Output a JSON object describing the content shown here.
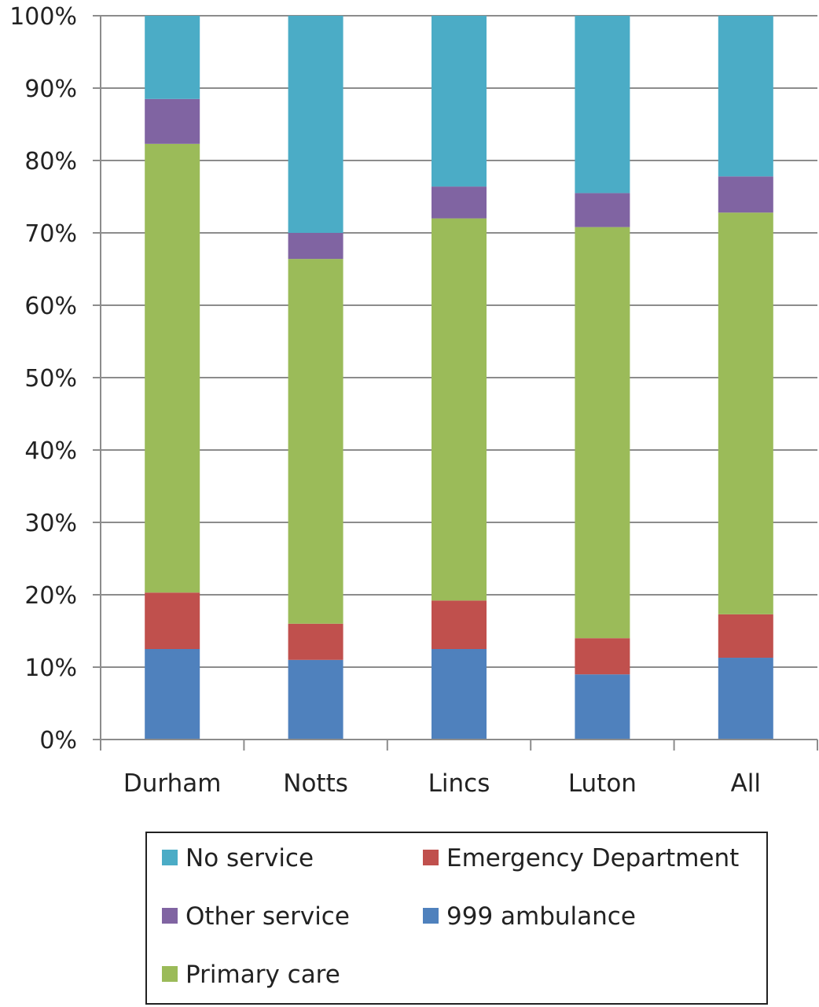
{
  "chart_data": {
    "type": "bar",
    "stacked": true,
    "normalized": true,
    "categories": [
      "Durham",
      "Notts",
      "Lincs",
      "Luton",
      "All"
    ],
    "series": [
      {
        "name": "999 ambulance",
        "color": "#4f81bd",
        "values": [
          12.5,
          11,
          12.5,
          9,
          11.3
        ]
      },
      {
        "name": "Emergency Department",
        "color": "#c0504d",
        "values": [
          7.8,
          5,
          6.7,
          5,
          6
        ]
      },
      {
        "name": "Primary care",
        "color": "#9bbb59",
        "values": [
          62,
          50.4,
          52.8,
          56.8,
          55.5
        ]
      },
      {
        "name": "Other service",
        "color": "#8064a2",
        "values": [
          6.2,
          3.6,
          4.4,
          4.7,
          5
        ]
      },
      {
        "name": "No service",
        "color": "#4bacc6",
        "values": [
          11.5,
          30,
          23.6,
          24.5,
          22.2
        ]
      }
    ],
    "ylim": [
      0,
      100
    ],
    "yticks": [
      "0%",
      "10%",
      "20%",
      "30%",
      "40%",
      "50%",
      "60%",
      "70%",
      "80%",
      "90%",
      "100%"
    ],
    "grid": true,
    "legend": {
      "placement": "bottom",
      "order": [
        "No service",
        "Emergency Department",
        "Other service",
        "999 ambulance",
        "Primary care"
      ]
    }
  }
}
